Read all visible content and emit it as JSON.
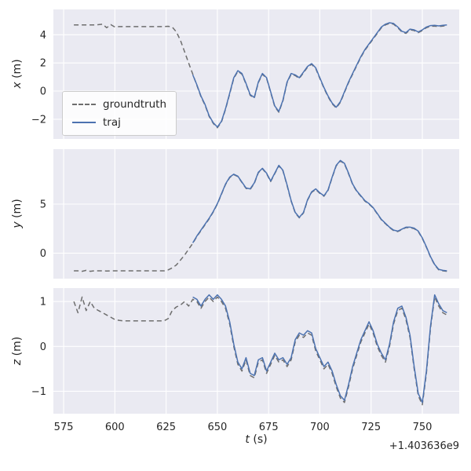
{
  "figure": {
    "xlabel": "t (s)",
    "xlabel_var": "t",
    "xlabel_unit": " (s)",
    "x_offset_text": "+1.403636e9",
    "x_ticks": [
      575,
      600,
      625,
      650,
      675,
      700,
      725,
      750
    ],
    "x_range": [
      570,
      768
    ],
    "colors": {
      "axes_bg": "#eaeaf2",
      "grid": "#ffffff",
      "traj": "#4c72b0",
      "groundtruth": "#6e6e6e",
      "text": "#262626"
    }
  },
  "legend": {
    "entries": [
      {
        "label": "groundtruth",
        "style": "dashed",
        "color": "#6e6e6e"
      },
      {
        "label": "traj",
        "style": "solid",
        "color": "#4c72b0"
      }
    ]
  },
  "chart_data": [
    {
      "type": "line",
      "ylabel": "x (m)",
      "ylabel_var": "x",
      "ylabel_unit": " (m)",
      "ylim": [
        -3.4,
        5.8
      ],
      "yticks": [
        -2,
        0,
        2,
        4
      ],
      "series": [
        {
          "name": "groundtruth",
          "dashed": true,
          "color": "#6e6e6e",
          "t_start": 580,
          "t_step": 2,
          "v": [
            4.7,
            4.7,
            4.7,
            4.7,
            4.7,
            4.7,
            4.72,
            4.75,
            4.5,
            4.72,
            4.55,
            4.58,
            4.58,
            4.58,
            4.58,
            4.58,
            4.58,
            4.58,
            4.58,
            4.58,
            4.58,
            4.58,
            4.58,
            4.6,
            4.55,
            4.2,
            3.6,
            2.8,
            2.0,
            1.2,
            0.4,
            -0.4,
            -1.0,
            -1.8,
            -2.3,
            -2.6,
            -2.2,
            -1.3,
            -0.2,
            0.9,
            1.4,
            1.2,
            0.5,
            -0.3,
            -0.5,
            0.6,
            1.2,
            0.9,
            -0.1,
            -1.1,
            -1.5,
            -0.7,
            0.6,
            1.2,
            1.1,
            0.9,
            1.3,
            1.7,
            1.9,
            1.6,
            0.9,
            0.2,
            -0.4,
            -0.9,
            -1.2,
            -0.8,
            -0.1,
            0.6,
            1.2,
            1.8,
            2.4,
            2.9,
            3.3,
            3.7,
            4.1,
            4.5,
            4.7,
            4.8,
            4.75,
            4.5,
            4.2,
            4.1,
            4.35,
            4.3,
            4.15,
            4.3,
            4.5,
            4.6,
            4.62,
            4.58,
            4.62,
            4.65
          ]
        },
        {
          "name": "traj",
          "dashed": false,
          "color": "#4c72b0",
          "t_start": 638,
          "t_step": 2,
          "v": [
            1.15,
            0.45,
            -0.35,
            -0.95,
            -1.75,
            -2.25,
            -2.55,
            -2.15,
            -1.25,
            -0.15,
            0.95,
            1.45,
            1.25,
            0.55,
            -0.25,
            -0.45,
            0.65,
            1.25,
            0.95,
            -0.05,
            -1.05,
            -1.45,
            -0.65,
            0.65,
            1.25,
            1.15,
            0.95,
            1.35,
            1.75,
            1.95,
            1.65,
            0.95,
            0.25,
            -0.35,
            -0.85,
            -1.15,
            -0.75,
            -0.05,
            0.65,
            1.25,
            1.85,
            2.45,
            2.95,
            3.35,
            3.75,
            4.15,
            4.55,
            4.75,
            4.85,
            4.8,
            4.55,
            4.25,
            4.15,
            4.4,
            4.35,
            4.2,
            4.35,
            4.55,
            4.65,
            4.67,
            4.63,
            4.67,
            4.7
          ]
        }
      ]
    },
    {
      "type": "line",
      "ylabel": "y (m)",
      "ylabel_var": "y",
      "ylabel_unit": " (m)",
      "ylim": [
        -2.6,
        10.6
      ],
      "yticks": [
        0,
        5
      ],
      "series": [
        {
          "name": "groundtruth",
          "dashed": true,
          "color": "#6e6e6e",
          "t_start": 580,
          "t_step": 2,
          "v": [
            -1.8,
            -1.8,
            -1.85,
            -1.75,
            -1.85,
            -1.8,
            -1.8,
            -1.8,
            -1.82,
            -1.8,
            -1.8,
            -1.8,
            -1.8,
            -1.8,
            -1.8,
            -1.8,
            -1.8,
            -1.8,
            -1.8,
            -1.8,
            -1.8,
            -1.8,
            -1.8,
            -1.7,
            -1.5,
            -1.2,
            -0.7,
            -0.2,
            0.4,
            1.0,
            1.7,
            2.3,
            2.9,
            3.5,
            4.2,
            5.0,
            6.0,
            7.0,
            7.7,
            8.0,
            7.8,
            7.2,
            6.6,
            6.5,
            7.1,
            8.2,
            8.6,
            8.1,
            7.3,
            8.1,
            8.9,
            8.4,
            6.9,
            5.3,
            4.1,
            3.6,
            4.1,
            5.4,
            6.2,
            6.5,
            6.1,
            5.8,
            6.4,
            7.7,
            8.9,
            9.4,
            9.1,
            8.1,
            7.0,
            6.3,
            5.8,
            5.3,
            5.0,
            4.6,
            4.0,
            3.4,
            3.0,
            2.6,
            2.3,
            2.2,
            2.4,
            2.6,
            2.6,
            2.5,
            2.2,
            1.5,
            0.6,
            -0.4,
            -1.2,
            -1.7,
            -1.8,
            -1.85
          ]
        },
        {
          "name": "traj",
          "dashed": false,
          "color": "#4c72b0",
          "t_start": 638,
          "t_step": 2,
          "v": [
            1.05,
            1.75,
            2.35,
            2.95,
            3.55,
            4.25,
            5.05,
            6.05,
            7.05,
            7.75,
            8.05,
            7.85,
            7.25,
            6.65,
            6.55,
            7.15,
            8.25,
            8.65,
            8.15,
            7.35,
            8.15,
            8.95,
            8.45,
            6.95,
            5.35,
            4.15,
            3.65,
            4.15,
            5.45,
            6.25,
            6.55,
            6.15,
            5.85,
            6.45,
            7.75,
            8.95,
            9.45,
            9.15,
            8.15,
            7.05,
            6.35,
            5.85,
            5.35,
            5.05,
            4.65,
            4.05,
            3.45,
            3.05,
            2.65,
            2.35,
            2.25,
            2.45,
            2.65,
            2.65,
            2.55,
            2.25,
            1.55,
            0.65,
            -0.35,
            -1.15,
            -1.65,
            -1.75,
            -1.8
          ]
        }
      ]
    },
    {
      "type": "line",
      "ylabel": "z (m)",
      "ylabel_var": "z",
      "ylabel_unit": " (m)",
      "ylim": [
        -1.5,
        1.3
      ],
      "yticks": [
        -1,
        0,
        1
      ],
      "series": [
        {
          "name": "groundtruth",
          "dashed": true,
          "color": "#6e6e6e",
          "t_start": 580,
          "t_step": 2,
          "v": [
            1.0,
            0.75,
            1.1,
            0.8,
            1.0,
            0.85,
            0.8,
            0.75,
            0.7,
            0.65,
            0.6,
            0.58,
            0.57,
            0.57,
            0.57,
            0.57,
            0.57,
            0.57,
            0.57,
            0.57,
            0.57,
            0.57,
            0.57,
            0.62,
            0.8,
            0.88,
            0.92,
            1.0,
            0.9,
            1.05,
            1.0,
            0.85,
            1.0,
            1.1,
            1.0,
            1.1,
            1.0,
            0.85,
            0.5,
            0.0,
            -0.4,
            -0.55,
            -0.3,
            -0.65,
            -0.7,
            -0.35,
            -0.3,
            -0.6,
            -0.4,
            -0.2,
            -0.35,
            -0.3,
            -0.45,
            -0.3,
            0.1,
            0.25,
            0.2,
            0.3,
            0.25,
            -0.1,
            -0.3,
            -0.5,
            -0.4,
            -0.6,
            -0.9,
            -1.15,
            -1.25,
            -0.9,
            -0.5,
            -0.2,
            0.1,
            0.3,
            0.5,
            0.3,
            0.0,
            -0.2,
            -0.35,
            0.0,
            0.5,
            0.8,
            0.85,
            0.6,
            0.2,
            -0.5,
            -1.1,
            -1.3,
            -0.6,
            0.4,
            1.1,
            0.9,
            0.75,
            0.7
          ]
        },
        {
          "name": "traj",
          "dashed": false,
          "color": "#4c72b0",
          "t_start": 638,
          "t_step": 2,
          "v": [
            1.1,
            1.05,
            0.9,
            1.05,
            1.15,
            1.05,
            1.15,
            1.05,
            0.9,
            0.55,
            0.05,
            -0.35,
            -0.5,
            -0.25,
            -0.6,
            -0.65,
            -0.3,
            -0.25,
            -0.55,
            -0.35,
            -0.15,
            -0.3,
            -0.25,
            -0.4,
            -0.25,
            0.15,
            0.3,
            0.25,
            0.35,
            0.3,
            -0.05,
            -0.25,
            -0.45,
            -0.35,
            -0.55,
            -0.85,
            -1.1,
            -1.2,
            -0.85,
            -0.45,
            -0.15,
            0.15,
            0.35,
            0.55,
            0.35,
            0.05,
            -0.15,
            -0.3,
            0.05,
            0.55,
            0.85,
            0.9,
            0.65,
            0.25,
            -0.45,
            -1.05,
            -1.25,
            -0.55,
            0.45,
            1.15,
            0.95,
            0.8,
            0.75
          ]
        }
      ]
    }
  ]
}
